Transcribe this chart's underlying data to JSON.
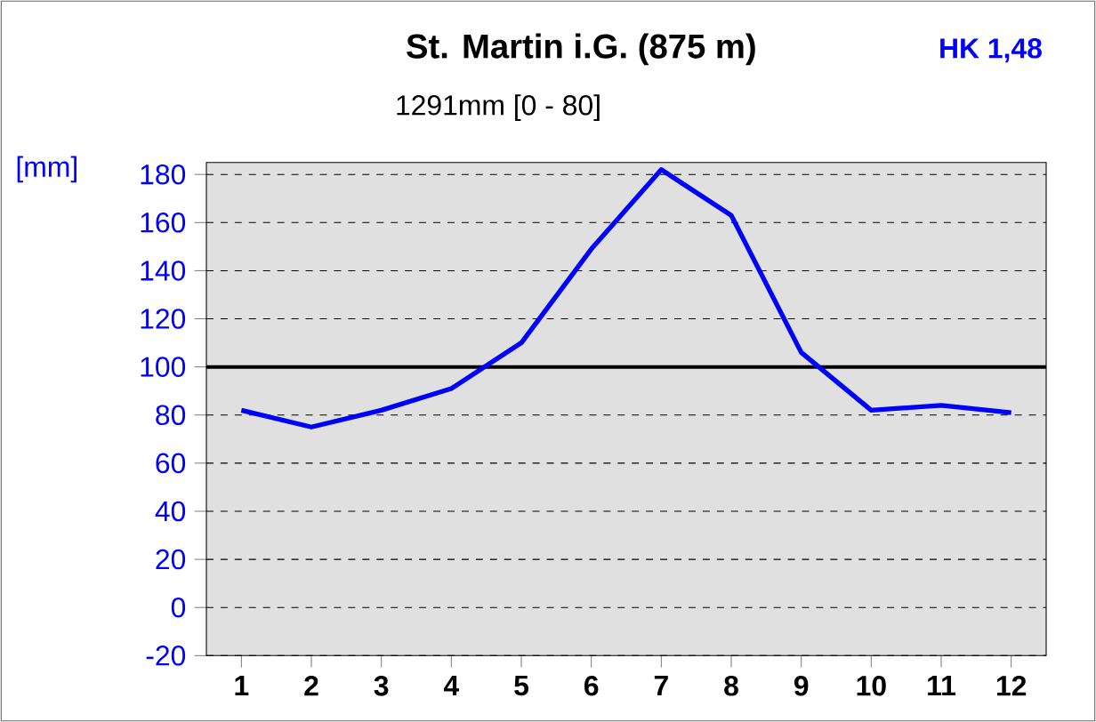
{
  "chart_data": {
    "type": "line",
    "title": "St. Martin i.G. (875 m)",
    "subtitle": "1291mm  [0 - 80]",
    "ylabel": "[mm]",
    "annotations": [
      "HK 1,48"
    ],
    "categories": [
      "1",
      "2",
      "3",
      "4",
      "5",
      "6",
      "7",
      "8",
      "9",
      "10",
      "11",
      "12"
    ],
    "series": [
      {
        "color": "#0000ff",
        "values": [
          82,
          75,
          82,
          91,
          110,
          149,
          182,
          163,
          106,
          82,
          84,
          81
        ]
      }
    ],
    "ylim": [
      -20,
      185
    ],
    "yticks": [
      -20,
      0,
      20,
      40,
      60,
      80,
      100,
      120,
      140,
      160,
      180
    ],
    "ref_lines": [
      {
        "axis": "y",
        "value": 100,
        "color": "#000000"
      }
    ],
    "grid": "y",
    "marker": "none",
    "line_style": "solid"
  }
}
